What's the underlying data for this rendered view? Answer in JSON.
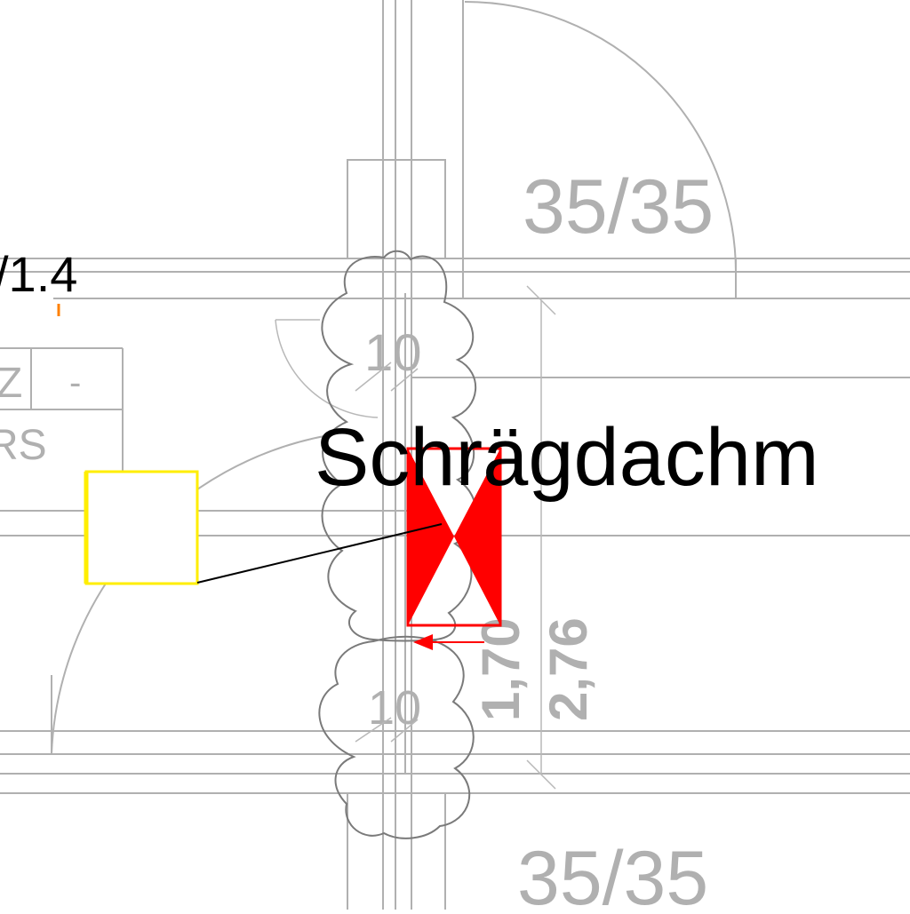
{
  "drawing": {
    "level_label": "/1.4",
    "pillar_top_label": "35/35",
    "pillar_bottom_label": "35/35",
    "wall_thickness_upper": "10",
    "wall_thickness_lower": "10",
    "dimension_inner": "1,70",
    "dimension_outer": "2,76",
    "annotation_text": "Schrägdachm",
    "table_cells": [
      "Z",
      "-",
      "RS"
    ]
  },
  "colors": {
    "line_gray": "#b0b0b0",
    "cloud_gray": "#7a7a7a",
    "marker_red": "#ff0000",
    "callout_yellow": "#ffee00",
    "text_black": "#000000",
    "orange_tick": "#ff8000"
  }
}
